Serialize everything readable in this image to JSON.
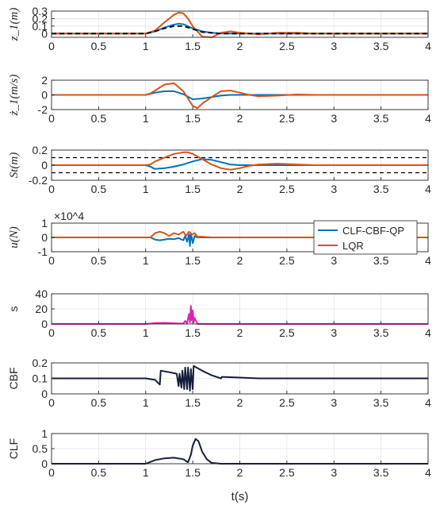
{
  "colors": {
    "clf": "#0072BD",
    "lqr": "#D95319",
    "ref": "#000000",
    "slack": "#E020B0",
    "dark": "#141E3C",
    "grid": "#e3e3e3",
    "axis": "#262626"
  },
  "legend": {
    "entries": [
      "CLF-CBF-QP",
      "LQR"
    ]
  },
  "xlabel": "t(s)",
  "chart_data": [
    {
      "type": "line",
      "ylabel": "z_1(m)",
      "xlim": [
        0,
        4
      ],
      "ylim": [
        -0.05,
        0.3
      ],
      "xticks": [
        "0",
        "0.5",
        "1",
        "1.5",
        "2",
        "2.5",
        "3",
        "3.5",
        "4"
      ],
      "yticks": [
        "0",
        "0.1",
        "0.2",
        "0.3"
      ],
      "yticks_values": [
        0,
        0.1,
        0.2,
        0.3
      ],
      "grid": true,
      "series": [
        {
          "color_key": "clf",
          "x": [
            0,
            1.0,
            1.1,
            1.2,
            1.3,
            1.35,
            1.4,
            1.5,
            1.6,
            1.7,
            1.8,
            2.0,
            4.0
          ],
          "y": [
            0,
            0,
            0.03,
            0.08,
            0.12,
            0.13,
            0.125,
            0.07,
            0.03,
            0.01,
            0,
            0,
            0
          ]
        },
        {
          "color_key": "lqr",
          "x": [
            0,
            1.0,
            1.1,
            1.2,
            1.3,
            1.35,
            1.4,
            1.45,
            1.5,
            1.6,
            1.7,
            1.8,
            1.9,
            2.0,
            2.2,
            2.4,
            2.6,
            2.8,
            3.0,
            4.0
          ],
          "y": [
            0,
            0,
            0.04,
            0.15,
            0.25,
            0.28,
            0.27,
            0.2,
            0.1,
            -0.04,
            -0.05,
            0.01,
            0.03,
            0.01,
            -0.01,
            0.01,
            0.01,
            0,
            0,
            0
          ]
        },
        {
          "color_key": "ref",
          "dashed": true,
          "x": [
            0,
            1.0,
            1.1,
            1.2,
            1.3,
            1.4,
            1.5,
            1.6,
            1.7,
            1.8,
            4.0
          ],
          "y": [
            0,
            0,
            0.03,
            0.07,
            0.1,
            0.1,
            0.06,
            0.02,
            0.01,
            0,
            0
          ]
        }
      ]
    },
    {
      "type": "line",
      "ylabel": "ż_1(m/s)",
      "xlim": [
        0,
        4
      ],
      "ylim": [
        -2,
        2
      ],
      "xticks": [
        "0",
        "0.5",
        "1",
        "1.5",
        "2",
        "2.5",
        "3",
        "3.5",
        "4"
      ],
      "yticks": [
        "-2",
        "0",
        "2"
      ],
      "yticks_values": [
        -2,
        0,
        2
      ],
      "grid": true,
      "series": [
        {
          "color_key": "clf",
          "x": [
            0,
            1.0,
            1.1,
            1.2,
            1.3,
            1.4,
            1.5,
            1.6,
            1.7,
            1.8,
            1.9,
            2.0,
            4.0
          ],
          "y": [
            0,
            0,
            0.3,
            0.5,
            0.5,
            0.1,
            -0.6,
            -0.5,
            -0.3,
            -0.1,
            0,
            0,
            0
          ]
        },
        {
          "color_key": "lqr",
          "x": [
            0,
            1.0,
            1.05,
            1.1,
            1.2,
            1.3,
            1.4,
            1.45,
            1.5,
            1.55,
            1.6,
            1.7,
            1.8,
            1.9,
            2.0,
            2.1,
            2.2,
            2.4,
            2.6,
            2.8,
            3.0,
            4.0
          ],
          "y": [
            0,
            0,
            0.2,
            0.6,
            1.4,
            1.6,
            0.5,
            -0.5,
            -1.5,
            -1.8,
            -1.2,
            -0.3,
            0.5,
            0.6,
            0.3,
            0,
            -0.2,
            -0.1,
            0.05,
            0,
            0,
            0
          ]
        }
      ]
    },
    {
      "type": "line",
      "ylabel": "St(m)",
      "xlim": [
        0,
        4
      ],
      "ylim": [
        -0.2,
        0.2
      ],
      "xticks": [
        "0",
        "0.5",
        "1",
        "1.5",
        "2",
        "2.5",
        "3",
        "3.5",
        "4"
      ],
      "yticks": [
        "-0.2",
        "0",
        "0.2"
      ],
      "yticks_values": [
        -0.2,
        0,
        0.2
      ],
      "grid": true,
      "hlines": [
        0.1,
        -0.1
      ],
      "series": [
        {
          "color_key": "clf",
          "x": [
            0,
            1.0,
            1.05,
            1.1,
            1.2,
            1.3,
            1.4,
            1.5,
            1.6,
            1.7,
            1.8,
            1.9,
            2.0,
            4.0
          ],
          "y": [
            0,
            0,
            -0.02,
            -0.05,
            -0.04,
            -0.02,
            0.01,
            0.05,
            0.08,
            0.07,
            0.04,
            0.01,
            0,
            0
          ]
        },
        {
          "color_key": "lqr",
          "x": [
            0,
            1.0,
            1.05,
            1.1,
            1.2,
            1.3,
            1.4,
            1.45,
            1.5,
            1.6,
            1.7,
            1.8,
            1.9,
            2.0,
            2.1,
            2.2,
            2.4,
            2.6,
            2.8,
            3.0,
            4.0
          ],
          "y": [
            0,
            0,
            0.01,
            0.05,
            0.1,
            0.15,
            0.17,
            0.17,
            0.15,
            0.08,
            0.01,
            -0.04,
            -0.06,
            -0.04,
            -0.01,
            0.01,
            0.02,
            0.01,
            0,
            0,
            0
          ]
        }
      ]
    },
    {
      "type": "line",
      "ylabel": "u(N)",
      "xlim": [
        0,
        4
      ],
      "ylim": [
        -1,
        1
      ],
      "yscale_note": "×10^4",
      "xticks": [
        "0",
        "0.5",
        "1",
        "1.5",
        "2",
        "2.5",
        "3",
        "3.5",
        "4"
      ],
      "yticks": [
        "-1",
        "0",
        "1"
      ],
      "yticks_values": [
        -1,
        0,
        1
      ],
      "grid": true,
      "series": [
        {
          "color_key": "clf",
          "x": [
            0,
            1.05,
            1.1,
            1.15,
            1.2,
            1.25,
            1.3,
            1.35,
            1.4,
            1.42,
            1.44,
            1.46,
            1.47,
            1.48,
            1.5,
            1.52,
            1.55,
            1.6,
            4.0
          ],
          "y": [
            0,
            0,
            -0.15,
            -0.2,
            -0.15,
            -0.1,
            -0.12,
            -0.05,
            -0.2,
            0.1,
            -0.3,
            0.2,
            -0.6,
            0.3,
            -0.4,
            0.1,
            0,
            0,
            0
          ]
        },
        {
          "color_key": "lqr",
          "x": [
            0,
            1.05,
            1.1,
            1.15,
            1.2,
            1.25,
            1.3,
            1.35,
            1.4,
            1.43,
            1.46,
            1.49,
            1.52,
            1.55,
            1.6,
            1.7,
            4.0
          ],
          "y": [
            0,
            0,
            0.3,
            0.4,
            0.3,
            0.1,
            0.3,
            0.2,
            0.4,
            0.1,
            0.4,
            0.2,
            0.3,
            0.05,
            0.05,
            0,
            0
          ]
        }
      ]
    },
    {
      "type": "line",
      "ylabel": "s",
      "xlim": [
        0,
        4
      ],
      "ylim": [
        0,
        40
      ],
      "xticks": [
        "0",
        "0.5",
        "1",
        "1.5",
        "2",
        "2.5",
        "3",
        "3.5",
        "4"
      ],
      "yticks": [
        "0",
        "20",
        "40"
      ],
      "yticks_values": [
        0,
        20,
        40
      ],
      "grid": true,
      "series": [
        {
          "color_key": "slack",
          "x": [
            0,
            1.0,
            1.1,
            1.2,
            1.3,
            1.4,
            1.42,
            1.44,
            1.46,
            1.47,
            1.48,
            1.49,
            1.5,
            1.51,
            1.52,
            1.55,
            4.0
          ],
          "y": [
            0,
            0,
            1.2,
            1.5,
            1.0,
            0.5,
            4,
            1,
            13,
            2,
            24,
            5,
            18,
            2,
            8,
            0,
            0
          ]
        }
      ]
    },
    {
      "type": "line",
      "ylabel": "CBF",
      "xlim": [
        0,
        4
      ],
      "ylim": [
        0,
        0.2
      ],
      "xticks": [
        "0",
        "0.5",
        "1",
        "1.5",
        "2",
        "2.5",
        "3",
        "3.5",
        "4"
      ],
      "yticks": [
        "0",
        "0.1",
        "0.2"
      ],
      "yticks_values": [
        0,
        0.1,
        0.2
      ],
      "grid": true,
      "series": [
        {
          "color_key": "dark",
          "x": [
            0,
            1.0,
            1.1,
            1.15,
            1.16,
            1.25,
            1.33,
            1.35,
            1.36,
            1.38,
            1.39,
            1.41,
            1.42,
            1.44,
            1.45,
            1.47,
            1.48,
            1.5,
            1.51,
            1.6,
            1.7,
            1.8,
            1.81,
            2.0,
            2.2,
            4.0
          ],
          "y": [
            0.1,
            0.1,
            0.09,
            0.06,
            0.15,
            0.14,
            0.13,
            0.05,
            0.13,
            0.04,
            0.15,
            0.03,
            0.17,
            0.03,
            0.17,
            0.02,
            0.16,
            0.03,
            0.18,
            0.15,
            0.12,
            0.1,
            0.11,
            0.105,
            0.1,
            0.1
          ]
        }
      ]
    },
    {
      "type": "line",
      "ylabel": "CLF",
      "xlim": [
        0,
        4
      ],
      "ylim": [
        0,
        1
      ],
      "xticks": [
        "0",
        "0.5",
        "1",
        "1.5",
        "2",
        "2.5",
        "3",
        "3.5",
        "4"
      ],
      "yticks": [
        "0",
        "0.5",
        "1"
      ],
      "yticks_values": [
        0,
        0.5,
        1
      ],
      "grid": true,
      "series": [
        {
          "color_key": "dark",
          "x": [
            0,
            1.0,
            1.1,
            1.2,
            1.3,
            1.4,
            1.45,
            1.48,
            1.5,
            1.53,
            1.56,
            1.6,
            1.65,
            1.7,
            1.8,
            4.0
          ],
          "y": [
            0,
            0,
            0.12,
            0.18,
            0.2,
            0.15,
            0.05,
            0.3,
            0.6,
            0.82,
            0.75,
            0.4,
            0.15,
            0.03,
            0,
            0
          ]
        }
      ]
    }
  ]
}
